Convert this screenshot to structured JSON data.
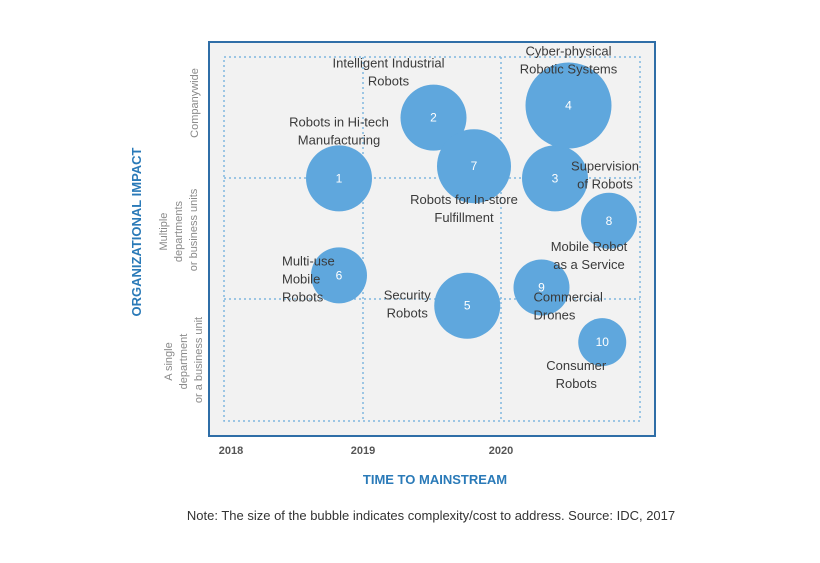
{
  "chart_data": {
    "type": "bubble",
    "xlabel": "TIME TO MAINSTREAM",
    "ylabel": "ORGANIZATIONAL IMPACT",
    "x_ticks": [
      "2018",
      "2019",
      "2020"
    ],
    "y_categories": [
      {
        "label": "Companywide"
      },
      {
        "label": "Multiple departments or business units"
      },
      {
        "label": "A single department or a business unit"
      }
    ],
    "note": "Note: The size of the bubble indicates complexity/cost to address. Source: IDC, 2017",
    "colors": {
      "bubble": "#5fa7dd",
      "frame": "#2f6ea7",
      "grid": "#7fb7e0",
      "plot_bg": "#f2f2f2",
      "axis_title": "#2a7ab8"
    },
    "grid": true,
    "x_range": [
      2017.9,
      2021.1
    ],
    "y_range": [
      0,
      3
    ],
    "bubbles": [
      {
        "id": "1",
        "label": [
          "Robots in Hi-tech",
          "Manufacturing"
        ],
        "x": 2018.8,
        "y": 2.0,
        "size": 33
      },
      {
        "id": "2",
        "label": [
          "Intelligent Industrial",
          "Robots"
        ],
        "x": 2019.5,
        "y": 2.5,
        "size": 33
      },
      {
        "id": "3",
        "label": [
          "Supervision",
          "of Robots"
        ],
        "x": 2020.4,
        "y": 2.0,
        "size": 33
      },
      {
        "id": "4",
        "label": [
          "Cyber-physical",
          "Robotic Systems"
        ],
        "x": 2020.5,
        "y": 2.6,
        "size": 43
      },
      {
        "id": "5",
        "label": [
          "Security",
          "Robots"
        ],
        "x": 2019.75,
        "y": 0.95,
        "size": 33
      },
      {
        "id": "6",
        "label": [
          "Multi-use",
          "Mobile",
          "Robots"
        ],
        "x": 2018.8,
        "y": 1.2,
        "size": 28
      },
      {
        "id": "7",
        "label": [
          "Robots for In-store",
          "Fulfillment"
        ],
        "x": 2019.8,
        "y": 2.1,
        "size": 37
      },
      {
        "id": "8",
        "label": [
          "Mobile Robot",
          "as a Service"
        ],
        "x": 2020.8,
        "y": 1.65,
        "size": 28
      },
      {
        "id": "9",
        "label": [
          "Commercial",
          "Drones"
        ],
        "x": 2020.3,
        "y": 1.1,
        "size": 28
      },
      {
        "id": "10",
        "label": [
          "Consumer",
          "Robots"
        ],
        "x": 2020.75,
        "y": 0.65,
        "size": 24
      }
    ]
  }
}
